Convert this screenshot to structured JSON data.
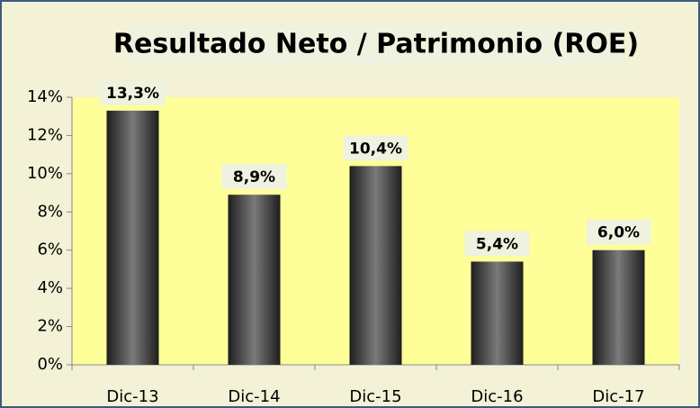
{
  "chart_data": {
    "type": "bar",
    "title": "Resultado Neto / Patrimonio (ROE)",
    "categories": [
      "Dic-13",
      "Dic-14",
      "Dic-15",
      "Dic-16",
      "Dic-17"
    ],
    "values": [
      13.3,
      8.9,
      10.4,
      5.4,
      6.0
    ],
    "value_labels": [
      "13,3%",
      "8,9%",
      "10,4%",
      "5,4%",
      "6,0%"
    ],
    "color": "#555555",
    "ylim": [
      0,
      14
    ],
    "yticks": [
      {
        "value": 0,
        "label": "0%"
      },
      {
        "value": 2,
        "label": "2%"
      },
      {
        "value": 4,
        "label": "4%"
      },
      {
        "value": 6,
        "label": "6%"
      },
      {
        "value": 8,
        "label": "8%"
      },
      {
        "value": 10,
        "label": "10%"
      },
      {
        "value": 12,
        "label": "12%"
      },
      {
        "value": 14,
        "label": "14%"
      }
    ]
  }
}
